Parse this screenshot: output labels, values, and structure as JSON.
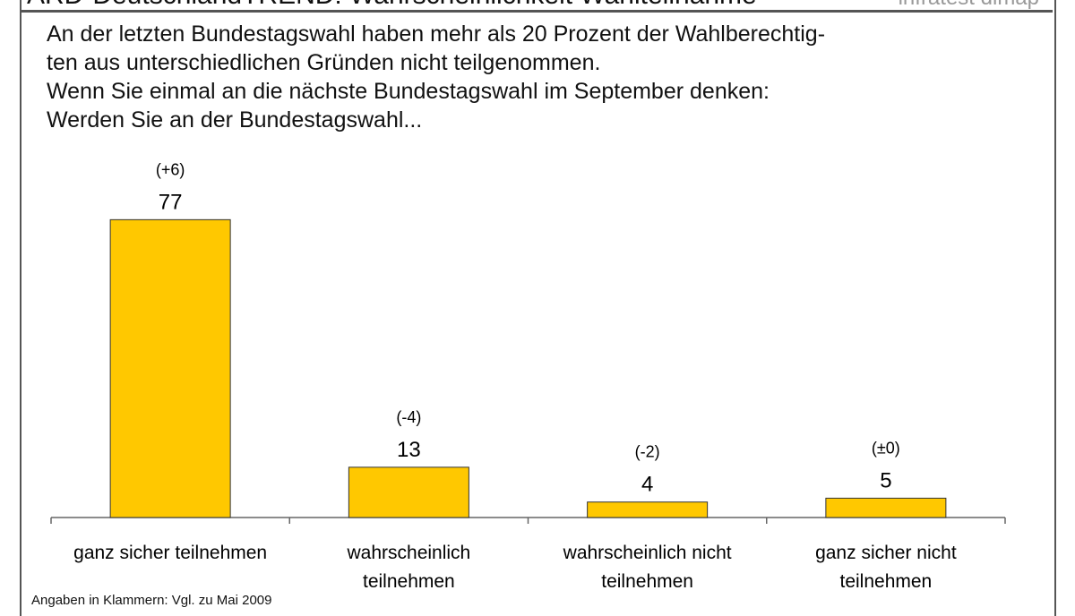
{
  "header": {
    "title": "ARD-DeutschlandTREND: Wahrscheinlichkeit Wahlteilnahme",
    "brand": "infratest dimap"
  },
  "question": [
    "An der letzten Bundestagswahl haben mehr als 20 Prozent der Wahlberechtig-",
    "ten aus unterschiedlichen Gründen nicht teilgenommen.",
    "Wenn Sie einmal an die nächste Bundestagswahl im September denken:",
    "Werden Sie an der Bundestagswahl..."
  ],
  "footnote": "Angaben in Klammern: Vgl. zu Mai 2009",
  "chart_data": {
    "type": "bar",
    "categories": [
      [
        "ganz sicher teilnehmen"
      ],
      [
        "wahrscheinlich",
        "teilnehmen"
      ],
      [
        "wahrscheinlich nicht",
        "teilnehmen"
      ],
      [
        "ganz sicher nicht",
        "teilnehmen"
      ]
    ],
    "values": [
      77,
      13,
      4,
      5
    ],
    "changes": [
      "(+6)",
      "(-4)",
      "(-2)",
      "(±0)"
    ],
    "bar_color": "#FFC800",
    "grid": false
  }
}
